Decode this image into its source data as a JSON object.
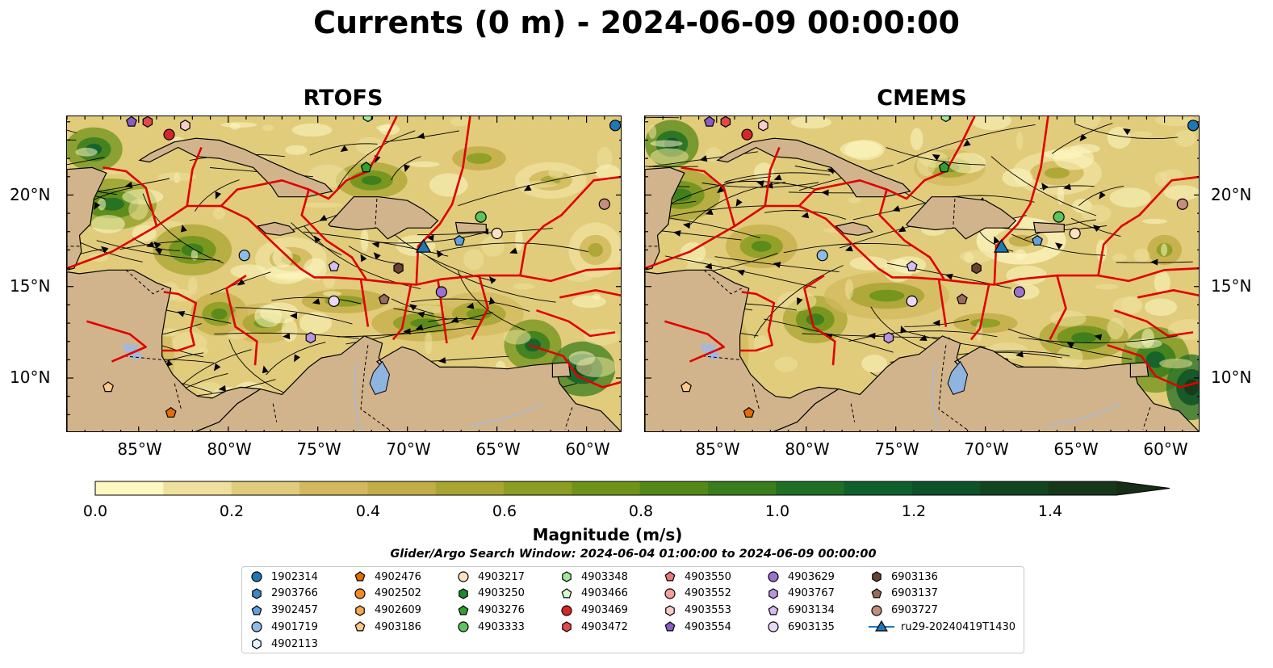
{
  "title": "Currents (0 m) - 2024-06-09 00:00:00",
  "panels": [
    {
      "title": "RTOFS"
    },
    {
      "title": "CMEMS"
    }
  ],
  "lat_labels": [
    "20°N",
    "15°N",
    "10°N"
  ],
  "lon_labels": [
    "85°W",
    "80°W",
    "75°W",
    "70°W",
    "65°W",
    "60°W"
  ],
  "colorbar": {
    "label": "Magnitude (m/s)",
    "ticks": [
      "0.0",
      "0.2",
      "0.4",
      "0.6",
      "0.8",
      "1.0",
      "1.2",
      "1.4"
    ],
    "colors": [
      "#fdf7c2",
      "#efe19d",
      "#e1cc7c",
      "#d2b95d",
      "#c3ad48",
      "#a8a532",
      "#8b9d22",
      "#6f931a",
      "#548818",
      "#3a7d1c",
      "#216f25",
      "#0f602b",
      "#0d5228",
      "#134420",
      "#163719",
      "#172d16"
    ]
  },
  "search_window": "Glider/Argo Search Window: 2024-06-04 01:00:00 to 2024-06-09 00:00:00",
  "chart_data": {
    "type": "map",
    "title": "Currents (0 m) - 2024-06-09 00:00:00",
    "panels": [
      "RTOFS",
      "CMEMS"
    ],
    "lon_range": [
      -89,
      -58
    ],
    "lat_range": [
      7,
      24.3
    ],
    "colorbar": {
      "label": "Magnitude (m/s)",
      "range": [
        0.0,
        1.5
      ],
      "step": 0.1,
      "extend": "max"
    },
    "legend_columns": 7,
    "platforms": [
      {
        "name": "1902314",
        "marker": "circle",
        "color": "#1f77b4",
        "lon": -58.4,
        "lat": 23.8
      },
      {
        "name": "2903766",
        "marker": "hexagon",
        "color": "#3f88c5",
        "lon": null,
        "lat": null
      },
      {
        "name": "3902457",
        "marker": "pentagon",
        "color": "#5fa2dd",
        "lon": -67.1,
        "lat": 17.5
      },
      {
        "name": "4901719",
        "marker": "circle",
        "color": "#8dbde6",
        "lon": -79.1,
        "lat": 16.7
      },
      {
        "name": "4902113",
        "marker": "hexagon",
        "color": "#e6f3ff",
        "lon": null,
        "lat": null
      },
      {
        "name": "4902476",
        "marker": "pentagon",
        "color": "#e66d00",
        "lon": -83.2,
        "lat": 8.1
      },
      {
        "name": "4902502",
        "marker": "circle",
        "color": "#f08a2a",
        "lon": null,
        "lat": null
      },
      {
        "name": "4902609",
        "marker": "hexagon",
        "color": "#f7a94d",
        "lon": null,
        "lat": null
      },
      {
        "name": "4903186",
        "marker": "pentagon",
        "color": "#fdc98b",
        "lon": -86.7,
        "lat": 9.5
      },
      {
        "name": "4903217",
        "marker": "circle",
        "color": "#fde2c2",
        "lon": -65.0,
        "lat": 17.9
      },
      {
        "name": "4903250",
        "marker": "hexagon",
        "color": "#1a8a2e",
        "lon": null,
        "lat": null
      },
      {
        "name": "4903276",
        "marker": "pentagon",
        "color": "#33a02c",
        "lon": -72.3,
        "lat": 21.5
      },
      {
        "name": "4903333",
        "marker": "circle",
        "color": "#5cc45a",
        "lon": -65.9,
        "lat": 18.8
      },
      {
        "name": "4903348",
        "marker": "hexagon",
        "color": "#a1e89a",
        "lon": -72.2,
        "lat": 24.3
      },
      {
        "name": "4903466",
        "marker": "pentagon",
        "color": "#d9f7d1",
        "lon": null,
        "lat": null
      },
      {
        "name": "4903469",
        "marker": "circle",
        "color": "#d62728",
        "lon": -83.3,
        "lat": 23.3
      },
      {
        "name": "4903472",
        "marker": "hexagon",
        "color": "#e24a4a",
        "lon": -84.5,
        "lat": 24.0
      },
      {
        "name": "4903550",
        "marker": "pentagon",
        "color": "#e8787a",
        "lon": null,
        "lat": null
      },
      {
        "name": "4903552",
        "marker": "circle",
        "color": "#f2a0a0",
        "lon": null,
        "lat": null
      },
      {
        "name": "4903553",
        "marker": "hexagon",
        "color": "#f9cccc",
        "lon": -82.4,
        "lat": 23.8
      },
      {
        "name": "4903554",
        "marker": "pentagon",
        "color": "#8a5cc4",
        "lon": -85.4,
        "lat": 24.0
      },
      {
        "name": "4903629",
        "marker": "circle",
        "color": "#9b72cf",
        "lon": -68.1,
        "lat": 14.7
      },
      {
        "name": "4903767",
        "marker": "hexagon",
        "color": "#b796de",
        "lon": -75.4,
        "lat": 12.2
      },
      {
        "name": "6903134",
        "marker": "pentagon",
        "color": "#d7bdf0",
        "lon": -74.1,
        "lat": 16.1
      },
      {
        "name": "6903135",
        "marker": "circle",
        "color": "#ead8f7",
        "lon": -74.1,
        "lat": 14.2
      },
      {
        "name": "6903136",
        "marker": "hexagon",
        "color": "#6b4131",
        "lon": -70.5,
        "lat": 16.0
      },
      {
        "name": "6903137",
        "marker": "pentagon",
        "color": "#9a6b5b",
        "lon": -71.3,
        "lat": 14.3
      },
      {
        "name": "6903727",
        "marker": "circle",
        "color": "#c48e7f",
        "lon": -59.0,
        "lat": 19.5
      },
      {
        "name": "ru29-20240419T1430",
        "marker": "triangle",
        "color": "#1f77b4",
        "lon": -69.1,
        "lat": 17.1
      }
    ]
  }
}
